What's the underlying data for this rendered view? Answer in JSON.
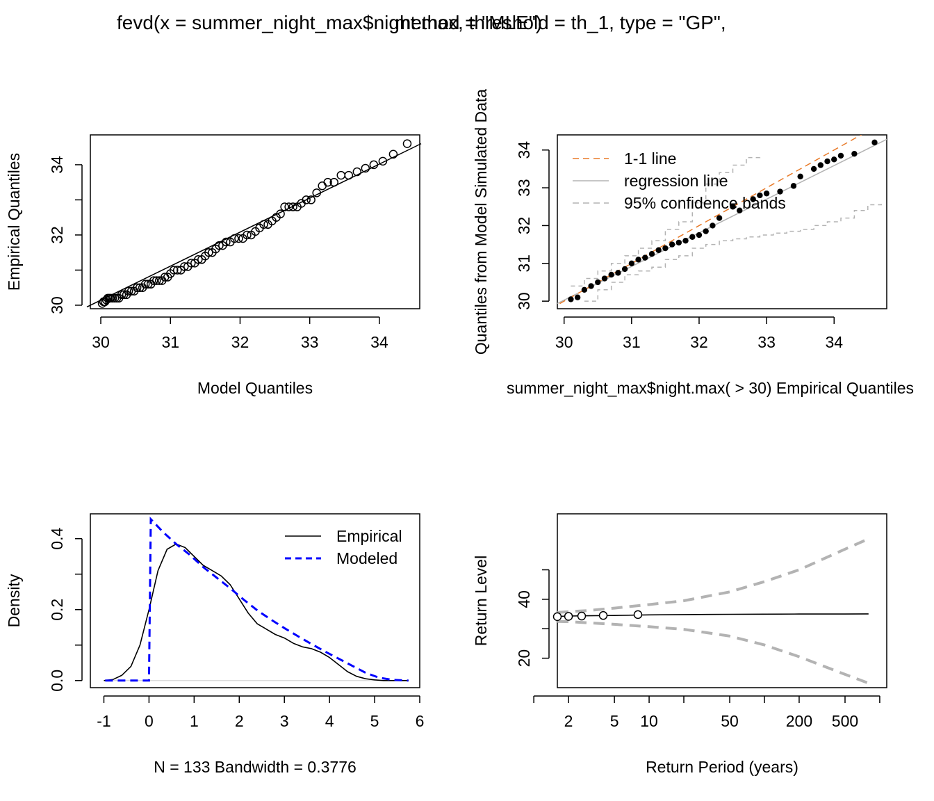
{
  "figure": {
    "title_part1": "fevd(x = summer_night_max$night.max, threshold = th_1, type = \"GP\",",
    "title_part2": "method = \"MLE\")"
  },
  "chart_data": [
    {
      "type": "scatter",
      "xlabel": "Model Quantiles",
      "ylabel": "Empirical Quantiles",
      "xlim": [
        29.85,
        34.58
      ],
      "ylim": [
        29.9,
        34.85
      ],
      "xticks": [
        "30",
        "31",
        "32",
        "33",
        "34"
      ],
      "yticks": [
        "30",
        "32",
        "34"
      ],
      "yticks_minor": [
        31,
        33
      ],
      "reference_line": {
        "x": [
          29.8,
          34.6
        ],
        "y": [
          29.95,
          34.6
        ]
      },
      "points": {
        "x": [
          30.02,
          30.04,
          30.06,
          30.08,
          30.1,
          30.12,
          30.14,
          30.17,
          30.2,
          30.23,
          30.26,
          30.3,
          30.33,
          30.37,
          30.4,
          30.44,
          30.48,
          30.52,
          30.56,
          30.6,
          30.64,
          30.68,
          30.72,
          30.76,
          30.8,
          30.84,
          30.88,
          30.92,
          30.96,
          31.0,
          31.05,
          31.1,
          31.15,
          31.2,
          31.25,
          31.3,
          31.35,
          31.4,
          31.45,
          31.5,
          31.55,
          31.6,
          31.65,
          31.7,
          31.75,
          31.8,
          31.86,
          31.92,
          31.98,
          32.04,
          32.1,
          32.16,
          32.22,
          32.28,
          32.34,
          32.4,
          32.46,
          32.52,
          32.58,
          32.64,
          32.7,
          32.76,
          32.82,
          32.88,
          32.95,
          33.02,
          33.1,
          33.18,
          33.26,
          33.35,
          33.45,
          33.56,
          33.68,
          33.8,
          33.92,
          34.05,
          34.2,
          34.4
        ],
        "y": [
          30.05,
          30.1,
          30.1,
          30.15,
          30.2,
          30.2,
          30.2,
          30.2,
          30.2,
          30.2,
          30.2,
          30.3,
          30.3,
          30.3,
          30.4,
          30.4,
          30.4,
          30.5,
          30.5,
          30.5,
          30.6,
          30.6,
          30.6,
          30.7,
          30.7,
          30.7,
          30.7,
          30.8,
          30.8,
          30.9,
          31.0,
          31.0,
          31.0,
          31.1,
          31.1,
          31.2,
          31.2,
          31.3,
          31.3,
          31.4,
          31.5,
          31.5,
          31.6,
          31.7,
          31.7,
          31.8,
          31.8,
          31.9,
          31.9,
          31.9,
          32.0,
          32.0,
          32.1,
          32.2,
          32.3,
          32.3,
          32.4,
          32.5,
          32.6,
          32.8,
          32.8,
          32.8,
          32.8,
          32.9,
          33.0,
          33.0,
          33.2,
          33.4,
          33.5,
          33.5,
          33.7,
          33.7,
          33.8,
          33.9,
          34.0,
          34.1,
          34.3,
          34.6
        ]
      }
    },
    {
      "type": "scatter",
      "xlabel": "summer_night_max$night.max( > 30) Empirical Quantiles",
      "ylabel": "Quantiles from Model Simulated Data",
      "xlim": [
        29.9,
        34.78
      ],
      "ylim": [
        29.8,
        34.4
      ],
      "xticks": [
        "30",
        "31",
        "32",
        "33",
        "34"
      ],
      "yticks": [
        "30",
        "31",
        "32",
        "33",
        "34"
      ],
      "legend": {
        "position": "top-left",
        "entries": [
          {
            "label": "1-1 line",
            "color": "#e87b2a",
            "dash": "dashed"
          },
          {
            "label": "regression line",
            "color": "#b3b3b3",
            "dash": "solid"
          },
          {
            "label": "95% confidence bands",
            "color": "#b3b3b3",
            "dash": "dashed"
          }
        ]
      },
      "one_to_one": {
        "x": [
          29.8,
          34.5
        ],
        "y": [
          29.8,
          34.5
        ]
      },
      "regression": {
        "x": [
          29.8,
          34.8
        ],
        "y": [
          29.85,
          34.3
        ]
      },
      "upper_band": {
        "x": [
          30.1,
          30.3,
          30.5,
          30.7,
          30.9,
          31.1,
          31.3,
          31.5,
          31.7,
          31.9,
          32.1,
          32.3,
          32.5,
          32.7,
          32.9
        ],
        "y": [
          30.4,
          30.6,
          30.8,
          31.0,
          31.2,
          31.4,
          31.6,
          31.9,
          32.1,
          32.6,
          33.1,
          33.4,
          33.6,
          33.8,
          33.9
        ]
      },
      "lower_band": {
        "x": [
          30.3,
          30.5,
          30.7,
          30.9,
          31.1,
          31.3,
          31.5,
          31.7,
          31.9,
          32.1,
          32.3,
          32.5,
          32.7,
          32.9,
          33.1,
          33.3,
          33.5,
          33.7,
          33.9,
          34.1,
          34.3,
          34.5,
          34.7
        ],
        "y": [
          30.0,
          30.3,
          30.5,
          30.7,
          30.8,
          30.9,
          31.1,
          31.2,
          31.4,
          31.5,
          31.6,
          31.65,
          31.7,
          31.75,
          31.8,
          31.85,
          31.9,
          32.0,
          32.1,
          32.2,
          32.4,
          32.55,
          32.6
        ]
      },
      "points": {
        "x": [
          30.1,
          30.2,
          30.3,
          30.4,
          30.5,
          30.6,
          30.7,
          30.8,
          30.9,
          31.0,
          31.1,
          31.2,
          31.3,
          31.4,
          31.5,
          31.6,
          31.7,
          31.8,
          31.9,
          32.0,
          32.1,
          32.2,
          32.3,
          32.5,
          32.6,
          32.8,
          32.9,
          33.0,
          33.2,
          33.4,
          33.5,
          33.7,
          33.8,
          33.9,
          34.0,
          34.1,
          34.3,
          34.6
        ],
        "y": [
          30.05,
          30.1,
          30.3,
          30.4,
          30.5,
          30.6,
          30.7,
          30.75,
          30.85,
          31.0,
          31.1,
          31.15,
          31.25,
          31.35,
          31.4,
          31.5,
          31.55,
          31.6,
          31.7,
          31.75,
          31.85,
          32.0,
          32.2,
          32.5,
          32.4,
          32.7,
          32.8,
          32.85,
          32.9,
          33.05,
          33.3,
          33.5,
          33.6,
          33.7,
          33.75,
          33.85,
          33.9,
          34.2
        ]
      }
    },
    {
      "type": "line",
      "xlabel": "N = 133   Bandwidth = 0.3776",
      "ylabel": "Density",
      "xlim": [
        -1.3,
        6.0
      ],
      "ylim": [
        -0.02,
        0.47
      ],
      "xticks": [
        "-1",
        "0",
        "1",
        "2",
        "3",
        "4",
        "5",
        "6"
      ],
      "yticks": [
        "0.0",
        "0.2",
        "0.4"
      ],
      "yticks_minor": [
        0.1,
        0.3
      ],
      "legend": {
        "position": "top-right",
        "entries": [
          {
            "label": "Empirical",
            "color": "#000000",
            "dash": "solid"
          },
          {
            "label": "Modeled",
            "color": "#0000ff",
            "dash": "dashed"
          }
        ]
      },
      "series": [
        {
          "name": "Empirical",
          "x": [
            -1.0,
            -0.8,
            -0.6,
            -0.4,
            -0.2,
            0.0,
            0.2,
            0.4,
            0.6,
            0.8,
            1.0,
            1.2,
            1.4,
            1.6,
            1.8,
            2.0,
            2.2,
            2.4,
            2.6,
            2.8,
            3.0,
            3.2,
            3.4,
            3.6,
            3.8,
            4.0,
            4.2,
            4.4,
            4.6,
            4.8,
            5.0,
            5.2,
            5.4,
            5.75
          ],
          "y": [
            0.0,
            0.003,
            0.015,
            0.04,
            0.1,
            0.2,
            0.31,
            0.37,
            0.385,
            0.375,
            0.35,
            0.325,
            0.31,
            0.295,
            0.27,
            0.23,
            0.19,
            0.16,
            0.145,
            0.13,
            0.12,
            0.105,
            0.095,
            0.09,
            0.08,
            0.065,
            0.045,
            0.025,
            0.012,
            0.005,
            0.002,
            0.0,
            0.0,
            0.0
          ]
        },
        {
          "name": "Modeled",
          "x": [
            -0.97,
            0.0,
            0.04,
            0.3,
            0.6,
            0.9,
            1.2,
            1.5,
            1.8,
            2.1,
            2.4,
            2.7,
            3.0,
            3.3,
            3.6,
            3.9,
            4.2,
            4.5,
            4.8,
            5.1,
            5.4,
            5.75
          ],
          "y": [
            0.0,
            0.0,
            0.455,
            0.42,
            0.385,
            0.355,
            0.32,
            0.29,
            0.26,
            0.228,
            0.198,
            0.172,
            0.148,
            0.125,
            0.103,
            0.082,
            0.062,
            0.042,
            0.022,
            0.008,
            0.002,
            0.0
          ]
        }
      ]
    },
    {
      "type": "line",
      "xlabel": "Return Period (years)",
      "ylabel": "Return Level",
      "x_scale": "log",
      "xlim": [
        1.6,
        1150
      ],
      "ylim": [
        10,
        69
      ],
      "xticks": [
        "2",
        "5",
        "10",
        "50",
        "200",
        "500"
      ],
      "xticks_minor": [
        1,
        20,
        100,
        1000
      ],
      "yticks": [
        "20",
        "40"
      ],
      "yticks_minor": [
        30,
        50
      ],
      "series": [
        {
          "name": "",
          "x": [
            1.6,
            2,
            3,
            5,
            10,
            20,
            50,
            100,
            200,
            500,
            800
          ],
          "y": [
            34.2,
            34.3,
            34.4,
            34.5,
            34.7,
            34.8,
            34.9,
            34.95,
            35.0,
            35.0,
            35.05
          ]
        },
        {
          "name": "",
          "x": [
            1.6,
            2,
            3,
            5,
            10,
            20,
            50,
            100,
            200,
            500,
            800
          ],
          "y": [
            35.5,
            35.8,
            36.2,
            37.0,
            38.2,
            39.5,
            42.5,
            46.0,
            50.0,
            57.0,
            60.5
          ]
        },
        {
          "name": "",
          "x": [
            1.6,
            2,
            3,
            5,
            10,
            20,
            50,
            100,
            200,
            500,
            800
          ],
          "y": [
            32.5,
            32.4,
            32.0,
            31.5,
            30.7,
            29.8,
            27.5,
            24.5,
            20.5,
            14.5,
            11.5
          ]
        }
      ],
      "points": {
        "x": [
          1.6,
          2.0,
          2.6,
          4.0,
          8.0
        ],
        "y": [
          34.1,
          34.2,
          34.3,
          34.5,
          34.8
        ]
      }
    }
  ]
}
